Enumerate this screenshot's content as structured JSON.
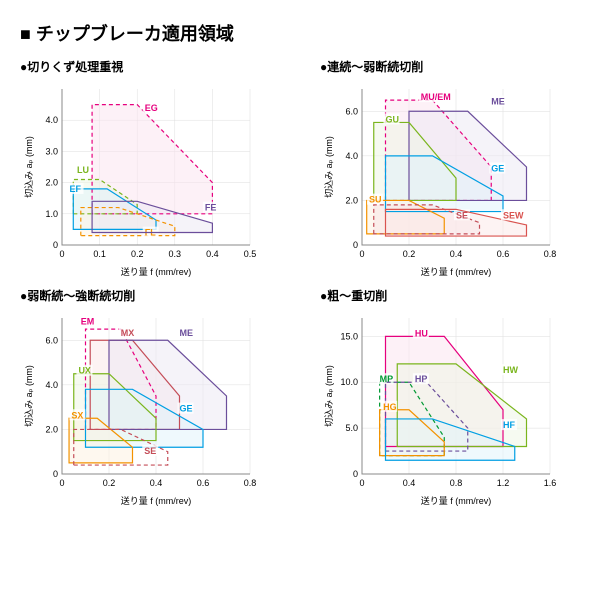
{
  "title": "■ チップブレーカ適用領域",
  "axis_y_label": "切込み aₚ (mm)",
  "axis_x_label": "送り量 f (mm/rev)",
  "charts": [
    {
      "subtitle": "●切りくず処理重視",
      "xlim": [
        0,
        0.5
      ],
      "xticks": [
        0,
        0.1,
        0.2,
        0.3,
        0.4,
        0.5
      ],
      "ylim": [
        0,
        5
      ],
      "yticks": [
        0,
        1.0,
        2.0,
        3.0,
        4.0
      ],
      "plot_bg": "#ffffff",
      "series": [
        {
          "id": "EG",
          "color": "#e6007e",
          "dash": "4,3",
          "fill": "#fce4ef",
          "pts": [
            [
              0.08,
              1
            ],
            [
              0.08,
              4.5
            ],
            [
              0.2,
              4.5
            ],
            [
              0.4,
              2
            ],
            [
              0.4,
              1
            ],
            [
              0.08,
              1
            ]
          ],
          "label_at": [
            0.22,
            4.3
          ]
        },
        {
          "id": "LU",
          "color": "#7ab51d",
          "dash": "4,3",
          "fill": "#eef6e3",
          "pts": [
            [
              0.03,
              1
            ],
            [
              0.03,
              2.1
            ],
            [
              0.1,
              2.1
            ],
            [
              0.2,
              1.3
            ],
            [
              0.2,
              1
            ],
            [
              0.03,
              1
            ]
          ],
          "label_at": [
            0.04,
            2.3
          ]
        },
        {
          "id": "EF",
          "color": "#009fe3",
          "dash": "",
          "fill": "#e0f3fc",
          "pts": [
            [
              0.03,
              0.5
            ],
            [
              0.03,
              1.8
            ],
            [
              0.12,
              1.8
            ],
            [
              0.25,
              0.8
            ],
            [
              0.25,
              0.5
            ],
            [
              0.03,
              0.5
            ]
          ],
          "label_at": [
            0.02,
            1.7
          ]
        },
        {
          "id": "FL",
          "color": "#f39200",
          "dash": "4,3",
          "fill": "#fdf1e0",
          "pts": [
            [
              0.05,
              0.3
            ],
            [
              0.05,
              1.2
            ],
            [
              0.15,
              1.2
            ],
            [
              0.3,
              0.6
            ],
            [
              0.3,
              0.3
            ],
            [
              0.05,
              0.3
            ]
          ],
          "label_at": [
            0.22,
            0.3
          ]
        },
        {
          "id": "FE",
          "color": "#6b4e9b",
          "dash": "",
          "fill": "#ece7f3",
          "pts": [
            [
              0.08,
              0.4
            ],
            [
              0.08,
              1.4
            ],
            [
              0.2,
              1.4
            ],
            [
              0.4,
              0.7
            ],
            [
              0.4,
              0.4
            ],
            [
              0.08,
              0.4
            ]
          ],
          "label_at": [
            0.38,
            1.1
          ]
        }
      ]
    },
    {
      "subtitle": "●連続～弱断続切削",
      "xlim": [
        0,
        0.8
      ],
      "xticks": [
        0,
        0.2,
        0.4,
        0.6,
        0.8
      ],
      "ylim": [
        0,
        7
      ],
      "yticks": [
        0,
        2.0,
        4.0,
        6.0
      ],
      "series": [
        {
          "id": "MU/EM",
          "color": "#e6007e",
          "dash": "4,3",
          "fill": "#fce4ef",
          "pts": [
            [
              0.1,
              2
            ],
            [
              0.1,
              6.5
            ],
            [
              0.3,
              6.5
            ],
            [
              0.55,
              3.5
            ],
            [
              0.55,
              2
            ],
            [
              0.1,
              2
            ]
          ],
          "label_at": [
            0.25,
            6.5
          ]
        },
        {
          "id": "ME",
          "color": "#6b4e9b",
          "dash": "",
          "fill": "#ece7f3",
          "pts": [
            [
              0.2,
              2
            ],
            [
              0.2,
              6
            ],
            [
              0.45,
              6
            ],
            [
              0.7,
              3.5
            ],
            [
              0.7,
              2
            ],
            [
              0.2,
              2
            ]
          ],
          "label_at": [
            0.55,
            6.3
          ]
        },
        {
          "id": "GU",
          "color": "#7ab51d",
          "dash": "",
          "fill": "#eef6e3",
          "pts": [
            [
              0.05,
              2
            ],
            [
              0.05,
              5.5
            ],
            [
              0.2,
              5.5
            ],
            [
              0.4,
              3
            ],
            [
              0.4,
              2
            ],
            [
              0.05,
              2
            ]
          ],
          "label_at": [
            0.1,
            5.5
          ]
        },
        {
          "id": "GE",
          "color": "#009fe3",
          "dash": "",
          "fill": "#e0f3fc",
          "pts": [
            [
              0.1,
              1.5
            ],
            [
              0.1,
              4
            ],
            [
              0.3,
              4
            ],
            [
              0.6,
              2.2
            ],
            [
              0.6,
              1.5
            ],
            [
              0.1,
              1.5
            ]
          ],
          "label_at": [
            0.55,
            3.3
          ]
        },
        {
          "id": "SU",
          "color": "#f39200",
          "dash": "",
          "fill": "#fdf1e0",
          "pts": [
            [
              0.02,
              0.5
            ],
            [
              0.02,
              2
            ],
            [
              0.2,
              2
            ],
            [
              0.35,
              1.2
            ],
            [
              0.35,
              0.5
            ],
            [
              0.02,
              0.5
            ]
          ],
          "label_at": [
            0.03,
            1.9
          ]
        },
        {
          "id": "SE",
          "color": "#c44d58",
          "dash": "4,3",
          "fill": "#f7e4e6",
          "pts": [
            [
              0.05,
              0.5
            ],
            [
              0.05,
              1.8
            ],
            [
              0.3,
              1.8
            ],
            [
              0.5,
              1
            ],
            [
              0.5,
              0.5
            ],
            [
              0.05,
              0.5
            ]
          ],
          "label_at": [
            0.4,
            1.2
          ]
        },
        {
          "id": "SEW",
          "color": "#d9534f",
          "dash": "",
          "fill": "#fbe8e7",
          "pts": [
            [
              0.1,
              0.4
            ],
            [
              0.1,
              1.6
            ],
            [
              0.4,
              1.6
            ],
            [
              0.7,
              0.9
            ],
            [
              0.7,
              0.4
            ],
            [
              0.1,
              0.4
            ]
          ],
          "label_at": [
            0.6,
            1.2
          ]
        }
      ]
    },
    {
      "subtitle": "●弱断続～強断続切削",
      "xlim": [
        0,
        0.8
      ],
      "xticks": [
        0,
        0.2,
        0.4,
        0.6,
        0.8
      ],
      "ylim": [
        0,
        7
      ],
      "yticks": [
        0,
        2.0,
        4.0,
        6.0
      ],
      "series": [
        {
          "id": "EM",
          "color": "#e6007e",
          "dash": "4,3",
          "fill": "none",
          "pts": [
            [
              0.1,
              2
            ],
            [
              0.1,
              6.5
            ],
            [
              0.25,
              6.5
            ],
            [
              0.4,
              3.5
            ],
            [
              0.4,
              2
            ],
            [
              0.1,
              2
            ]
          ],
          "label_at": [
            0.08,
            6.7
          ]
        },
        {
          "id": "MX",
          "color": "#c44d58",
          "dash": "",
          "fill": "#fbe8e7",
          "pts": [
            [
              0.12,
              2
            ],
            [
              0.12,
              6
            ],
            [
              0.3,
              6
            ],
            [
              0.5,
              3.5
            ],
            [
              0.5,
              2
            ],
            [
              0.12,
              2
            ]
          ],
          "label_at": [
            0.25,
            6.2
          ]
        },
        {
          "id": "ME",
          "color": "#6b4e9b",
          "dash": "",
          "fill": "#ece7f3",
          "pts": [
            [
              0.2,
              2
            ],
            [
              0.2,
              6
            ],
            [
              0.45,
              6
            ],
            [
              0.7,
              3.5
            ],
            [
              0.7,
              2
            ],
            [
              0.2,
              2
            ]
          ],
          "label_at": [
            0.5,
            6.2
          ]
        },
        {
          "id": "UX",
          "color": "#7ab51d",
          "dash": "",
          "fill": "#eef6e3",
          "pts": [
            [
              0.05,
              1.5
            ],
            [
              0.05,
              4.5
            ],
            [
              0.2,
              4.5
            ],
            [
              0.4,
              2.5
            ],
            [
              0.4,
              1.5
            ],
            [
              0.05,
              1.5
            ]
          ],
          "label_at": [
            0.07,
            4.5
          ]
        },
        {
          "id": "GE",
          "color": "#009fe3",
          "dash": "",
          "fill": "#e0f3fc",
          "pts": [
            [
              0.1,
              1.2
            ],
            [
              0.1,
              3.8
            ],
            [
              0.3,
              3.8
            ],
            [
              0.6,
              2
            ],
            [
              0.6,
              1.2
            ],
            [
              0.1,
              1.2
            ]
          ],
          "label_at": [
            0.5,
            2.8
          ]
        },
        {
          "id": "SX",
          "color": "#f39200",
          "dash": "",
          "fill": "#fdf1e0",
          "pts": [
            [
              0.03,
              0.5
            ],
            [
              0.03,
              2.5
            ],
            [
              0.15,
              2.5
            ],
            [
              0.3,
              1.2
            ],
            [
              0.3,
              0.5
            ],
            [
              0.03,
              0.5
            ]
          ],
          "label_at": [
            0.04,
            2.5
          ]
        },
        {
          "id": "SE",
          "color": "#c44d58",
          "dash": "4,3",
          "fill": "none",
          "pts": [
            [
              0.05,
              0.4
            ],
            [
              0.05,
              2
            ],
            [
              0.25,
              2
            ],
            [
              0.45,
              1
            ],
            [
              0.45,
              0.4
            ],
            [
              0.05,
              0.4
            ]
          ],
          "label_at": [
            0.35,
            0.9
          ]
        }
      ]
    },
    {
      "subtitle": "●粗～重切削",
      "xlim": [
        0,
        1.6
      ],
      "xticks": [
        0,
        0.4,
        0.8,
        1.2,
        1.6
      ],
      "ylim": [
        0,
        17
      ],
      "yticks": [
        0,
        5.0,
        10.0,
        15.0
      ],
      "series": [
        {
          "id": "HU",
          "color": "#e6007e",
          "dash": "",
          "fill": "#fce4ef",
          "pts": [
            [
              0.2,
              3
            ],
            [
              0.2,
              15
            ],
            [
              0.7,
              15
            ],
            [
              1.2,
              7
            ],
            [
              1.2,
              3
            ],
            [
              0.2,
              3
            ]
          ],
          "label_at": [
            0.45,
            15
          ]
        },
        {
          "id": "HW",
          "color": "#7ab51d",
          "dash": "",
          "fill": "#eef6e3",
          "pts": [
            [
              0.3,
              3
            ],
            [
              0.3,
              12
            ],
            [
              0.8,
              12
            ],
            [
              1.4,
              6
            ],
            [
              1.4,
              3
            ],
            [
              0.3,
              3
            ]
          ],
          "label_at": [
            1.2,
            11
          ]
        },
        {
          "id": "MP",
          "color": "#009933",
          "dash": "4,3",
          "fill": "none",
          "pts": [
            [
              0.15,
              2
            ],
            [
              0.15,
              10
            ],
            [
              0.4,
              10
            ],
            [
              0.7,
              4
            ],
            [
              0.7,
              2
            ],
            [
              0.15,
              2
            ]
          ],
          "label_at": [
            0.15,
            10
          ]
        },
        {
          "id": "HP",
          "color": "#6b4e9b",
          "dash": "4,3",
          "fill": "none",
          "pts": [
            [
              0.2,
              2.5
            ],
            [
              0.2,
              10
            ],
            [
              0.55,
              10
            ],
            [
              0.9,
              5
            ],
            [
              0.9,
              2.5
            ],
            [
              0.2,
              2.5
            ]
          ],
          "label_at": [
            0.45,
            10
          ]
        },
        {
          "id": "HG",
          "color": "#f39200",
          "dash": "",
          "fill": "#fdf1e0",
          "pts": [
            [
              0.15,
              2
            ],
            [
              0.15,
              7
            ],
            [
              0.4,
              7
            ],
            [
              0.7,
              3.5
            ],
            [
              0.7,
              2
            ],
            [
              0.15,
              2
            ]
          ],
          "label_at": [
            0.18,
            7
          ]
        },
        {
          "id": "HF",
          "color": "#009fe3",
          "dash": "",
          "fill": "#e0f3fc",
          "pts": [
            [
              0.2,
              1.5
            ],
            [
              0.2,
              6
            ],
            [
              0.6,
              6
            ],
            [
              1.3,
              3
            ],
            [
              1.3,
              1.5
            ],
            [
              0.2,
              1.5
            ]
          ],
          "label_at": [
            1.2,
            5
          ]
        }
      ]
    }
  ]
}
